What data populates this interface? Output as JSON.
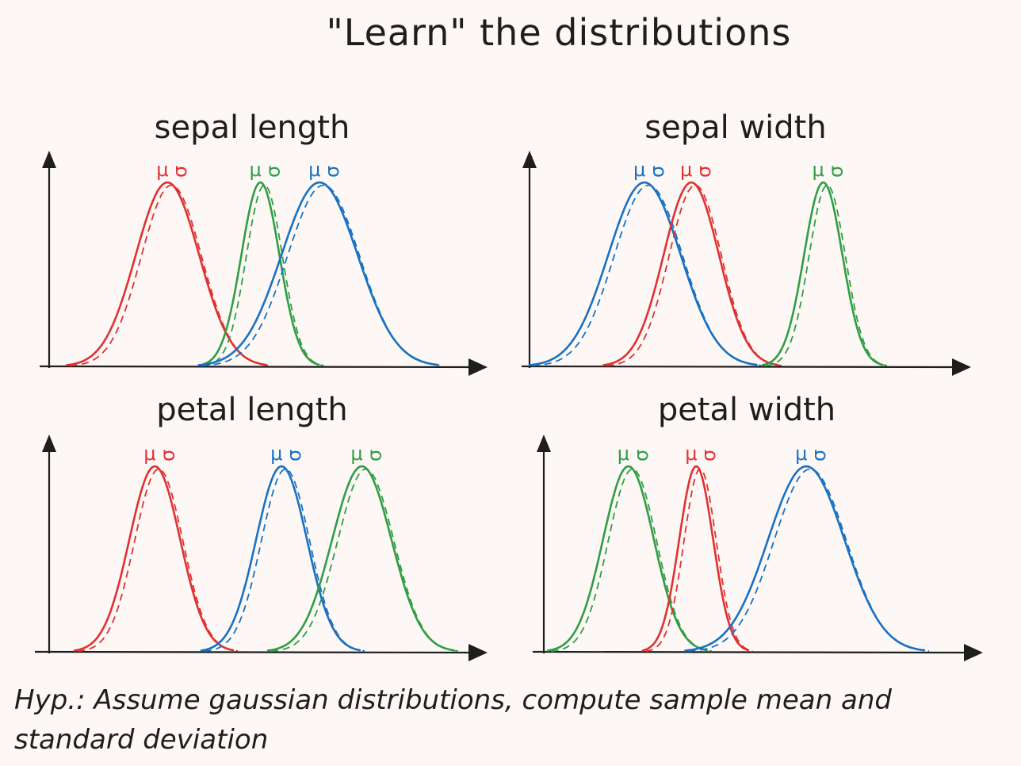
{
  "title": "\"Learn\" the distributions",
  "footnote": "Hyp.: Assume gaussian distributions, compute sample mean and standard deviation",
  "colors": {
    "setosa": "#e03131",
    "versicolor": "#2f9e44",
    "virginica": "#1971c2",
    "axis": "#1e1e1e"
  },
  "param_labels": {
    "mean": "μ",
    "std": "σ"
  },
  "panels": [
    {
      "id": "sepal-length",
      "title": "sepal length",
      "curves": [
        {
          "color": "setosa",
          "mean": 0.28,
          "std": 0.075
        },
        {
          "color": "versicolor",
          "mean": 0.5,
          "std": 0.045
        },
        {
          "color": "virginica",
          "mean": 0.64,
          "std": 0.09
        }
      ]
    },
    {
      "id": "sepal-width",
      "title": "sepal width",
      "curves": [
        {
          "color": "virginica",
          "mean": 0.27,
          "std": 0.085
        },
        {
          "color": "setosa",
          "mean": 0.38,
          "std": 0.065
        },
        {
          "color": "versicolor",
          "mean": 0.69,
          "std": 0.045
        }
      ]
    },
    {
      "id": "petal-length",
      "title": "petal length",
      "curves": [
        {
          "color": "setosa",
          "mean": 0.25,
          "std": 0.06
        },
        {
          "color": "virginica",
          "mean": 0.55,
          "std": 0.06
        },
        {
          "color": "versicolor",
          "mean": 0.74,
          "std": 0.07
        }
      ]
    },
    {
      "id": "petal-width",
      "title": "petal width",
      "curves": [
        {
          "color": "versicolor",
          "mean": 0.2,
          "std": 0.06
        },
        {
          "color": "setosa",
          "mean": 0.36,
          "std": 0.04
        },
        {
          "color": "virginica",
          "mean": 0.62,
          "std": 0.09
        }
      ]
    }
  ]
}
